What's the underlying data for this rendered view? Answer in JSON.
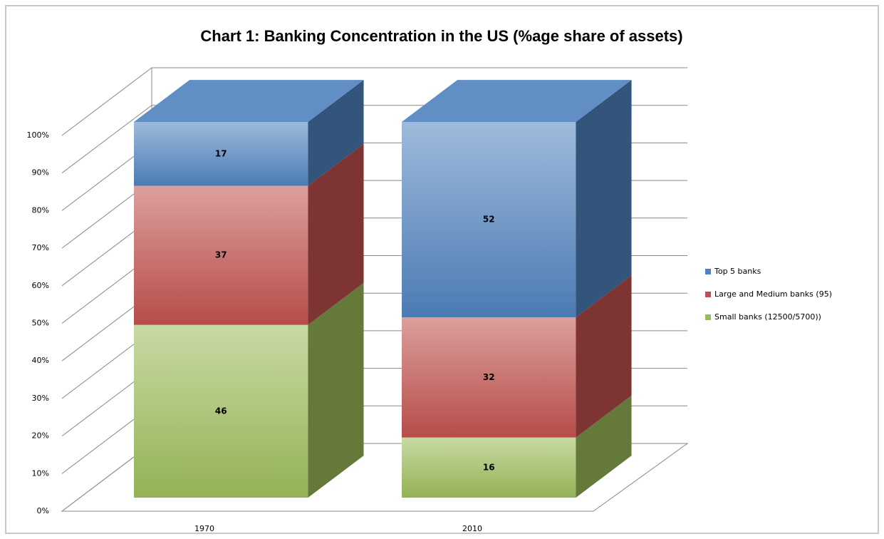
{
  "chart_data": {
    "type": "stacked_bar_3d",
    "title": "Chart 1: Banking Concentration in the US (%age share of assets)",
    "categories": [
      "1970",
      "2010"
    ],
    "series": [
      {
        "name": "Small banks (12500/5700))",
        "color": "#9bbb59",
        "values": [
          46,
          16
        ]
      },
      {
        "name": "Large and Medium banks (95)",
        "color": "#c0504d",
        "values": [
          37,
          32
        ]
      },
      {
        "name": "Top 5 banks",
        "color": "#4f81bd",
        "values": [
          17,
          52
        ]
      }
    ],
    "ylim": [
      0,
      100
    ],
    "yticks": [
      {
        "value": 0,
        "label": "0%"
      },
      {
        "value": 10,
        "label": "10%"
      },
      {
        "value": 20,
        "label": "20%"
      },
      {
        "value": 30,
        "label": "30%"
      },
      {
        "value": 40,
        "label": "40%"
      },
      {
        "value": 50,
        "label": "50%"
      },
      {
        "value": 60,
        "label": "60%"
      },
      {
        "value": 70,
        "label": "70%"
      },
      {
        "value": 80,
        "label": "80%"
      },
      {
        "value": 90,
        "label": "90%"
      },
      {
        "value": 100,
        "label": "100%"
      }
    ],
    "grid": true,
    "legend": "right"
  }
}
